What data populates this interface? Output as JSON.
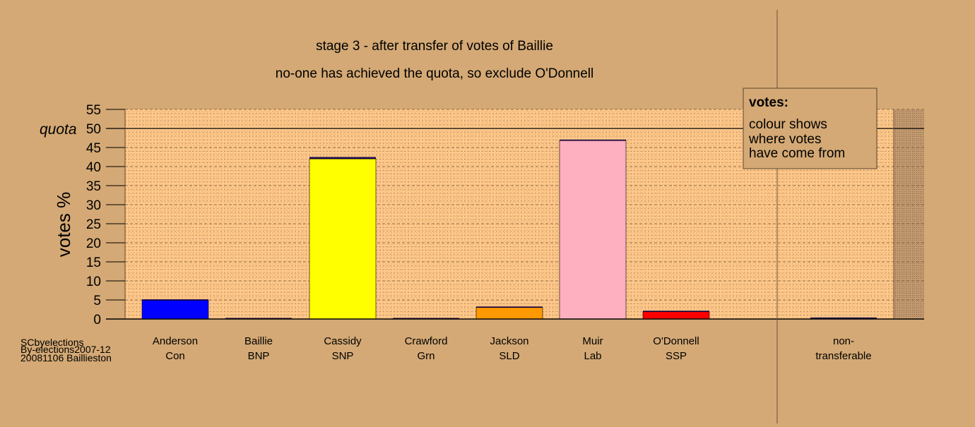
{
  "chart_data": {
    "type": "bar",
    "title": "stage 3 - after transfer of votes of Baillie",
    "subtitle": "no-one has achieved the quota, so exclude O'Donnell",
    "ylabel": "votes %",
    "ylim": [
      0,
      55
    ],
    "yticks": [
      "0",
      "5",
      "10",
      "15",
      "20",
      "25",
      "30",
      "35",
      "40",
      "45",
      "50",
      "55"
    ],
    "quota_label": "quota",
    "quota_value": 50,
    "categories": [
      {
        "line1": "Anderson",
        "line2": "Con"
      },
      {
        "line1": "Baillie",
        "line2": "BNP"
      },
      {
        "line1": "Cassidy",
        "line2": "SNP"
      },
      {
        "line1": "Crawford",
        "line2": "Grn"
      },
      {
        "line1": "Jackson",
        "line2": "SLD"
      },
      {
        "line1": "Muir",
        "line2": "Lab"
      },
      {
        "line1": "O'Donnell",
        "line2": "SSP"
      },
      {
        "line1": "non-",
        "line2": "transferable"
      }
    ],
    "series": [
      {
        "values": [
          4.9,
          0.0,
          42.0,
          0.0,
          3.0,
          46.8,
          1.9,
          0.0
        ],
        "color_key": "party"
      },
      {
        "values": [
          0.1,
          0.0,
          0.5,
          0.0,
          0.0,
          0.0,
          0.2,
          0.4
        ],
        "color_key": "transfer_from_baillie"
      }
    ],
    "colors": {
      "party": [
        "#0000ff",
        "#1e0a4a",
        "#ffff00",
        "#1e0a4a",
        "#ff9900",
        "#ffb0c0",
        "#ff0000",
        "#1e0a4a"
      ],
      "transfer_from_baillie": "#1e0a4a",
      "plot_background": "#ffc88a",
      "page_background": "#d4a975"
    },
    "grid": true,
    "legend": {
      "title": "votes:",
      "lines": [
        "colour shows",
        "where votes",
        "have come from"
      ],
      "placement": "top-right"
    },
    "source_lines": [
      "SCbyelections",
      "By-elections2007-12",
      "20081106 Baillieston"
    ]
  }
}
